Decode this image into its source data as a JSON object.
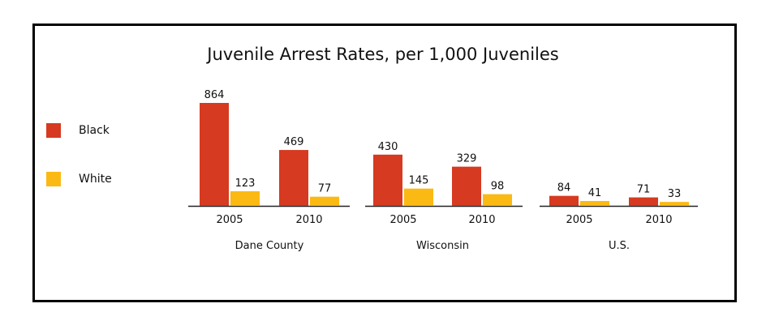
{
  "chart_data": {
    "type": "bar",
    "title": "Juvenile Arrest Rates, per 1,000 Juveniles",
    "groups": [
      {
        "name": "Dane County",
        "categories": [
          "2005",
          "2010"
        ],
        "series": [
          {
            "name": "Black",
            "values": [
              864,
              469
            ]
          },
          {
            "name": "White",
            "values": [
              123,
              77
            ]
          }
        ]
      },
      {
        "name": "Wisconsin",
        "categories": [
          "2005",
          "2010"
        ],
        "series": [
          {
            "name": "Black",
            "values": [
              430,
              329
            ]
          },
          {
            "name": "White",
            "values": [
              145,
              98
            ]
          }
        ]
      },
      {
        "name": "U.S.",
        "categories": [
          "2005",
          "2010"
        ],
        "series": [
          {
            "name": "Black",
            "values": [
              84,
              71
            ]
          },
          {
            "name": "White",
            "values": [
              41,
              33
            ]
          }
        ]
      }
    ],
    "legend": [
      {
        "name": "Black",
        "color": "#d63a20"
      },
      {
        "name": "White",
        "color": "#fbb913"
      }
    ],
    "legend_position": "left",
    "grid": false,
    "ylim": [
      0,
      864
    ]
  }
}
